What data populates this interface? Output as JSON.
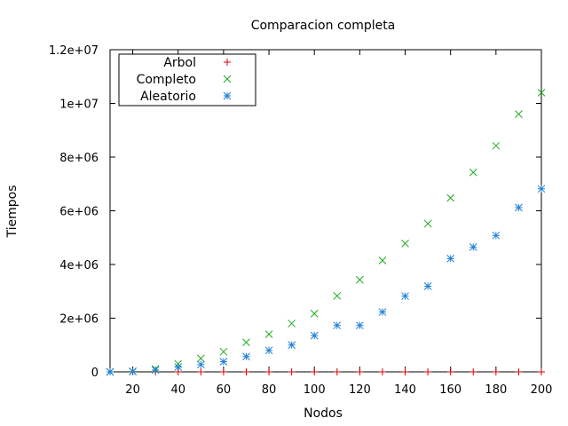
{
  "chart_data": {
    "type": "scatter",
    "title": "Comparacion completa",
    "xlabel": "Nodos",
    "ylabel": "Tiempos",
    "xlim": [
      10,
      200
    ],
    "ylim": [
      0,
      12000000
    ],
    "x_ticks": [
      20,
      40,
      60,
      80,
      100,
      120,
      140,
      160,
      180,
      200
    ],
    "y_ticks": [
      0,
      2000000,
      4000000,
      6000000,
      8000000,
      10000000,
      12000000
    ],
    "y_tick_labels": [
      "0",
      "2e+06",
      "4e+06",
      "6e+06",
      "8e+06",
      "1e+07",
      "1.2e+07"
    ],
    "grid": false,
    "legend": "top-left",
    "series": [
      {
        "name": "Arbol",
        "marker": "plus",
        "color": "#dd0000",
        "x": [
          10,
          20,
          30,
          40,
          50,
          60,
          70,
          80,
          90,
          100,
          110,
          120,
          130,
          140,
          150,
          160,
          170,
          180,
          190,
          200
        ],
        "y": [
          0,
          0,
          0,
          0,
          0,
          0,
          0,
          0,
          0,
          0,
          0,
          0,
          0,
          0,
          0,
          0,
          0,
          0,
          0,
          0
        ]
      },
      {
        "name": "Completo",
        "marker": "cross",
        "color": "#22aa22",
        "x": [
          10,
          20,
          30,
          40,
          50,
          60,
          70,
          80,
          90,
          100,
          110,
          120,
          130,
          140,
          150,
          160,
          170,
          180,
          190,
          200
        ],
        "y": [
          0,
          20000,
          110000,
          300000,
          500000,
          750000,
          1100000,
          1400000,
          1800000,
          2170000,
          2830000,
          3430000,
          4150000,
          4780000,
          5520000,
          6480000,
          7430000,
          8420000,
          9600000,
          10400000
        ]
      },
      {
        "name": "Aleatorio",
        "marker": "star",
        "color": "#1e7fd6",
        "x": [
          10,
          20,
          30,
          40,
          50,
          60,
          70,
          80,
          90,
          100,
          110,
          120,
          130,
          140,
          150,
          160,
          170,
          180,
          190,
          200
        ],
        "y": [
          0,
          10000,
          70000,
          180000,
          270000,
          380000,
          570000,
          800000,
          1000000,
          1350000,
          1730000,
          1730000,
          2230000,
          2820000,
          3190000,
          4220000,
          4650000,
          5080000,
          6120000,
          6820000
        ]
      }
    ]
  }
}
